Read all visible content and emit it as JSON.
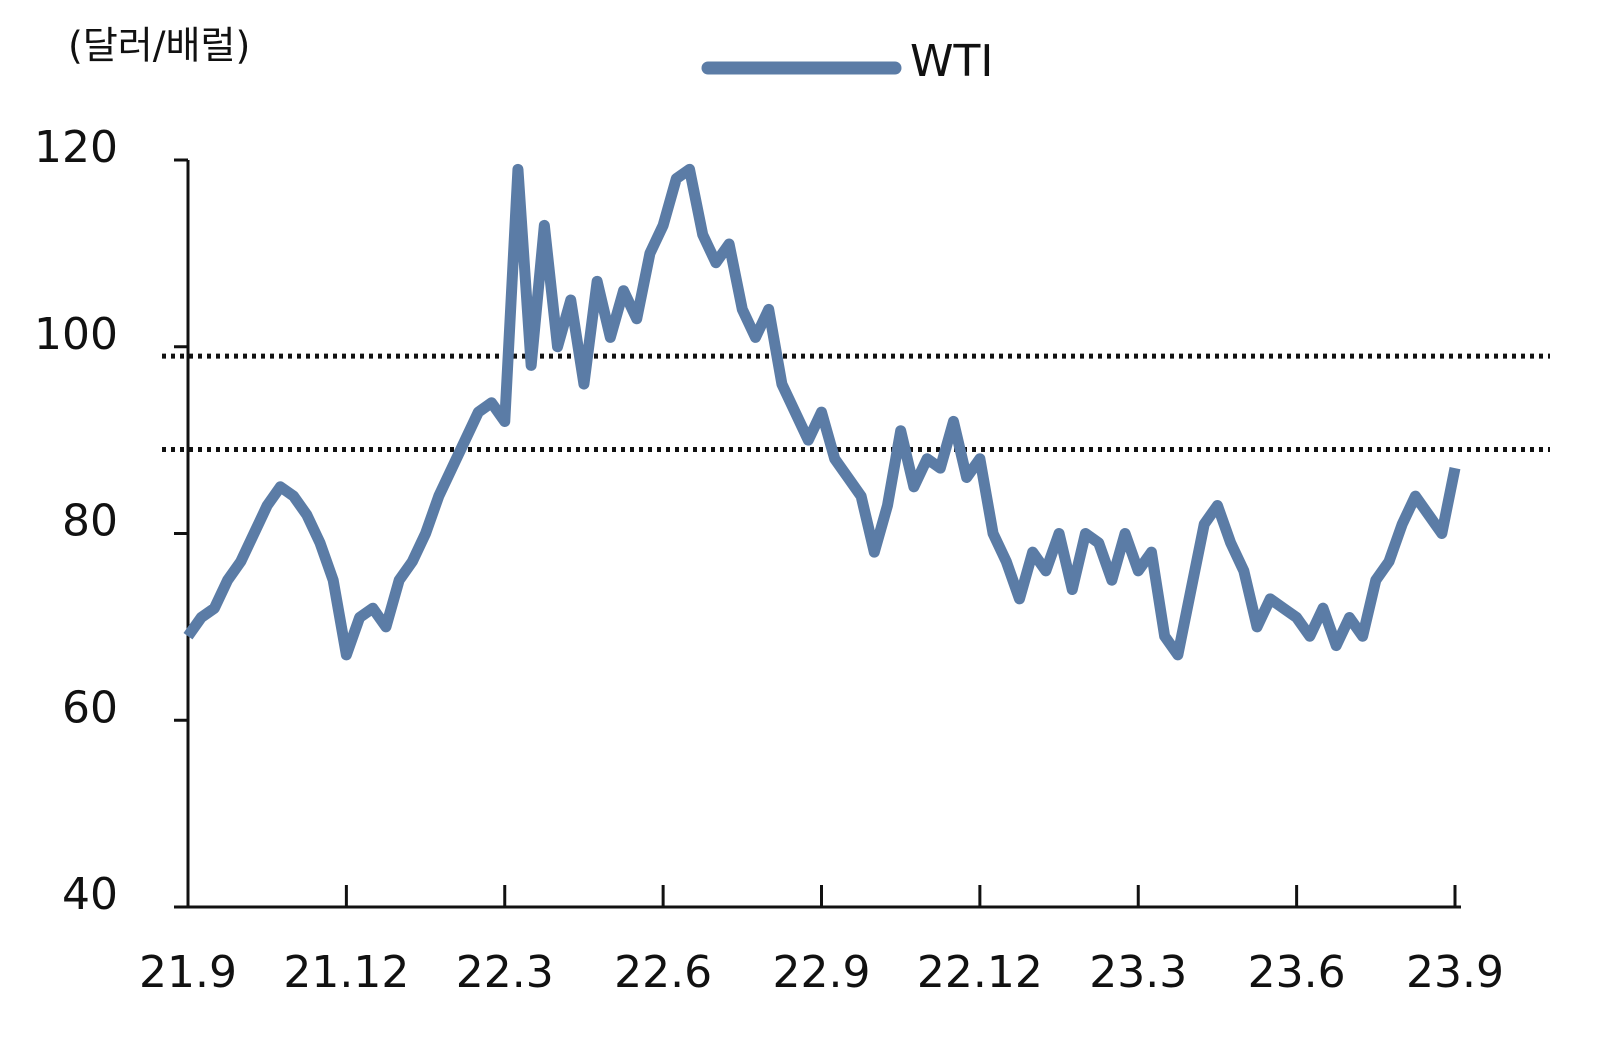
{
  "chart_data": {
    "type": "line",
    "y_axis_label": "(달러/배럴)",
    "categories": [
      "21.9",
      null,
      null,
      null,
      null,
      null,
      null,
      null,
      null,
      null,
      null,
      null,
      "21.12",
      null,
      null,
      null,
      null,
      null,
      null,
      null,
      null,
      null,
      null,
      null,
      "22.3",
      null,
      null,
      null,
      null,
      null,
      null,
      null,
      null,
      null,
      null,
      null,
      "22.6",
      null,
      null,
      null,
      null,
      null,
      null,
      null,
      null,
      null,
      null,
      null,
      "22.9",
      null,
      null,
      null,
      null,
      null,
      null,
      null,
      null,
      null,
      null,
      null,
      "22.12",
      null,
      null,
      null,
      null,
      null,
      null,
      null,
      null,
      null,
      null,
      null,
      "23.3",
      null,
      null,
      null,
      null,
      null,
      null,
      null,
      null,
      null,
      null,
      null,
      "23.6",
      null,
      null,
      null,
      null,
      null,
      null,
      null,
      null,
      null,
      null,
      null,
      "23.9"
    ],
    "series": [
      {
        "name": "WTI",
        "color": "#5b7ca6",
        "values": [
          69,
          71,
          72,
          75,
          77,
          80,
          83,
          85,
          84,
          82,
          79,
          75,
          67,
          71,
          72,
          70,
          75,
          77,
          80,
          84,
          87,
          90,
          93,
          94,
          92,
          119,
          98,
          113,
          100,
          105,
          96,
          107,
          101,
          106,
          103,
          110,
          113,
          118,
          119,
          112,
          109,
          111,
          104,
          101,
          104,
          96,
          93,
          90,
          93,
          88,
          86,
          84,
          78,
          83,
          91,
          85,
          88,
          87,
          92,
          86,
          88,
          80,
          77,
          73,
          78,
          76,
          80,
          74,
          80,
          79,
          75,
          80,
          76,
          78,
          69,
          67,
          74,
          81,
          83,
          79,
          76,
          70,
          73,
          72,
          71,
          69,
          72,
          68,
          71,
          69,
          75,
          77,
          81,
          84,
          82,
          80,
          87
        ]
      }
    ],
    "reference_lines": [
      99,
      89
    ],
    "ylim": [
      40,
      120
    ],
    "yticks": [
      40,
      60,
      80,
      100,
      120
    ]
  }
}
